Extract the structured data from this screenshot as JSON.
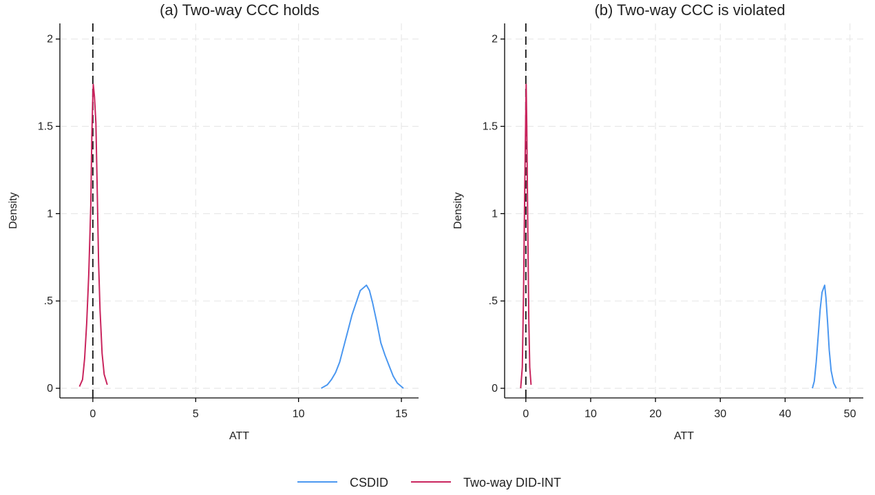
{
  "colors": {
    "CSDID": "#4a97f0",
    "Two-way DID-INT": "#c9245d",
    "background": "#ffffff"
  },
  "legend": {
    "position": "bottom-center",
    "items": [
      {
        "label": "CSDID",
        "color": "#4a97f0"
      },
      {
        "label": "Two-way DID-INT",
        "color": "#c9245d"
      }
    ]
  },
  "chart_data": [
    {
      "type": "line",
      "title": "(a) Two-way CCC holds",
      "xlabel": "ATT",
      "ylabel": "Density",
      "xlim": [
        -1.2,
        15.5
      ],
      "ylim": [
        0,
        2.05
      ],
      "xticks": [
        0,
        5,
        10,
        15
      ],
      "xtick_labels": [
        "0",
        "5",
        "10",
        "15"
      ],
      "yticks": [
        0,
        0.5,
        1,
        1.5,
        2
      ],
      "ytick_labels": [
        "0",
        ".5",
        "1",
        "1.5",
        "2"
      ],
      "grid": true,
      "reference_line": {
        "axis": "x",
        "value": 0,
        "style": "dashed"
      },
      "series": [
        {
          "name": "CSDID",
          "points": [
            [
              11.1,
              0.0
            ],
            [
              11.4,
              0.02
            ],
            [
              11.6,
              0.05
            ],
            [
              11.8,
              0.09
            ],
            [
              12.0,
              0.15
            ],
            [
              12.2,
              0.24
            ],
            [
              12.4,
              0.33
            ],
            [
              12.6,
              0.42
            ],
            [
              12.8,
              0.49
            ],
            [
              13.0,
              0.56
            ],
            [
              13.2,
              0.58
            ],
            [
              13.3,
              0.59
            ],
            [
              13.45,
              0.56
            ],
            [
              13.6,
              0.49
            ],
            [
              13.8,
              0.38
            ],
            [
              14.0,
              0.26
            ],
            [
              14.2,
              0.19
            ],
            [
              14.4,
              0.13
            ],
            [
              14.6,
              0.07
            ],
            [
              14.8,
              0.03
            ],
            [
              15.0,
              0.01
            ],
            [
              15.1,
              0.0
            ]
          ]
        },
        {
          "name": "Two-way DID-INT",
          "points": [
            [
              -0.65,
              0.01
            ],
            [
              -0.5,
              0.05
            ],
            [
              -0.4,
              0.17
            ],
            [
              -0.3,
              0.37
            ],
            [
              -0.2,
              0.65
            ],
            [
              -0.1,
              1.05
            ],
            [
              -0.05,
              1.45
            ],
            [
              0.0,
              1.68
            ],
            [
              0.02,
              1.74
            ],
            [
              0.08,
              1.67
            ],
            [
              0.15,
              1.52
            ],
            [
              0.22,
              1.1
            ],
            [
              0.28,
              0.72
            ],
            [
              0.35,
              0.45
            ],
            [
              0.45,
              0.2
            ],
            [
              0.55,
              0.08
            ],
            [
              0.7,
              0.02
            ]
          ]
        }
      ]
    },
    {
      "type": "line",
      "title": "(b) Two-way CCC is violated",
      "xlabel": "ATT",
      "ylabel": "Density",
      "xlim": [
        -2,
        51
      ],
      "ylim": [
        0,
        2.05
      ],
      "xticks": [
        0,
        10,
        20,
        30,
        40,
        50
      ],
      "xtick_labels": [
        "0",
        "10",
        "20",
        "30",
        "40",
        "50"
      ],
      "yticks": [
        0,
        0.5,
        1,
        1.5,
        2
      ],
      "ytick_labels": [
        "0",
        ".5",
        "1",
        "1.5",
        "2"
      ],
      "grid": true,
      "reference_line": {
        "axis": "x",
        "value": 0,
        "style": "dashed"
      },
      "series": [
        {
          "name": "CSDID",
          "points": [
            [
              44.2,
              0.0
            ],
            [
              44.5,
              0.04
            ],
            [
              44.8,
              0.15
            ],
            [
              45.1,
              0.3
            ],
            [
              45.4,
              0.45
            ],
            [
              45.7,
              0.55
            ],
            [
              46.0,
              0.58
            ],
            [
              46.1,
              0.59
            ],
            [
              46.3,
              0.52
            ],
            [
              46.55,
              0.38
            ],
            [
              46.8,
              0.22
            ],
            [
              47.1,
              0.1
            ],
            [
              47.5,
              0.03
            ],
            [
              47.9,
              0.0
            ]
          ]
        },
        {
          "name": "Two-way DID-INT",
          "points": [
            [
              -0.8,
              0.0
            ],
            [
              -0.55,
              0.12
            ],
            [
              -0.35,
              0.55
            ],
            [
              -0.15,
              1.2
            ],
            [
              0.0,
              1.6
            ],
            [
              0.05,
              1.74
            ],
            [
              0.15,
              1.5
            ],
            [
              0.3,
              0.9
            ],
            [
              0.45,
              0.4
            ],
            [
              0.6,
              0.12
            ],
            [
              0.8,
              0.02
            ]
          ]
        }
      ]
    }
  ]
}
